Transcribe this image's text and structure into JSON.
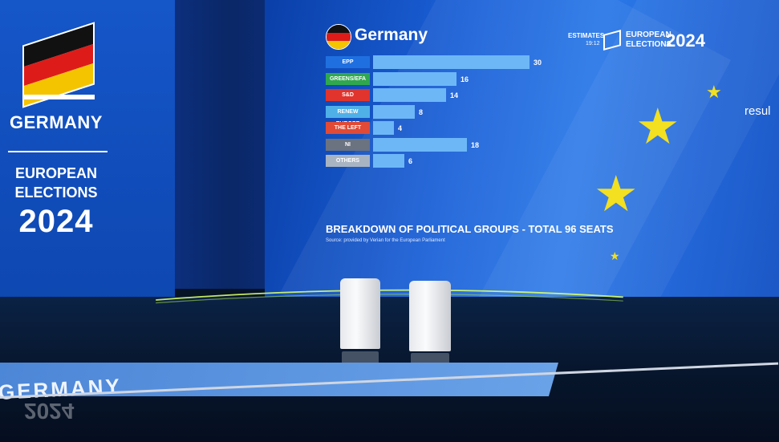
{
  "left_screen": {
    "country": "GERMANY",
    "euro_line1": "EUROPEAN",
    "euro_line2": "ELECTIONS",
    "year": "2024"
  },
  "chart_panel": {
    "country": "Germany",
    "estimates_label": "ESTIMATES",
    "estimates_time": "19:12",
    "logo_line1": "EUROPEAN",
    "logo_line2": "ELECTIONS",
    "logo_year": "2024",
    "breakdown_title": "BREAKDOWN OF POLITICAL GROUPS - TOTAL 96 SEATS",
    "source": "Source: provided by Verian for the European Parliament",
    "partial_text": "resul"
  },
  "chart_data": {
    "type": "bar",
    "orientation": "horizontal",
    "categories": [
      "EPP",
      "GREENS/EFA",
      "S&D",
      "RENEW EUROPE",
      "THE LEFT",
      "NI",
      "OTHERS"
    ],
    "values": [
      30,
      16,
      14,
      8,
      4,
      18,
      6
    ],
    "label_colors": [
      "#1f6fe0",
      "#2fa84f",
      "#e0342c",
      "#4fb0e8",
      "#e04a36",
      "#6b7280",
      "#a9b4c2"
    ],
    "bar_color": "#6db7f7",
    "title": "BREAKDOWN OF POLITICAL GROUPS - TOTAL 96 SEATS"
  },
  "floor_banner": {
    "text": "GERMANY",
    "reflected_year": "2024"
  },
  "colors": {
    "flag_black": "#111111",
    "flag_red": "#dd1c1a",
    "flag_gold": "#f5c400",
    "eu_star": "#f2e021"
  }
}
